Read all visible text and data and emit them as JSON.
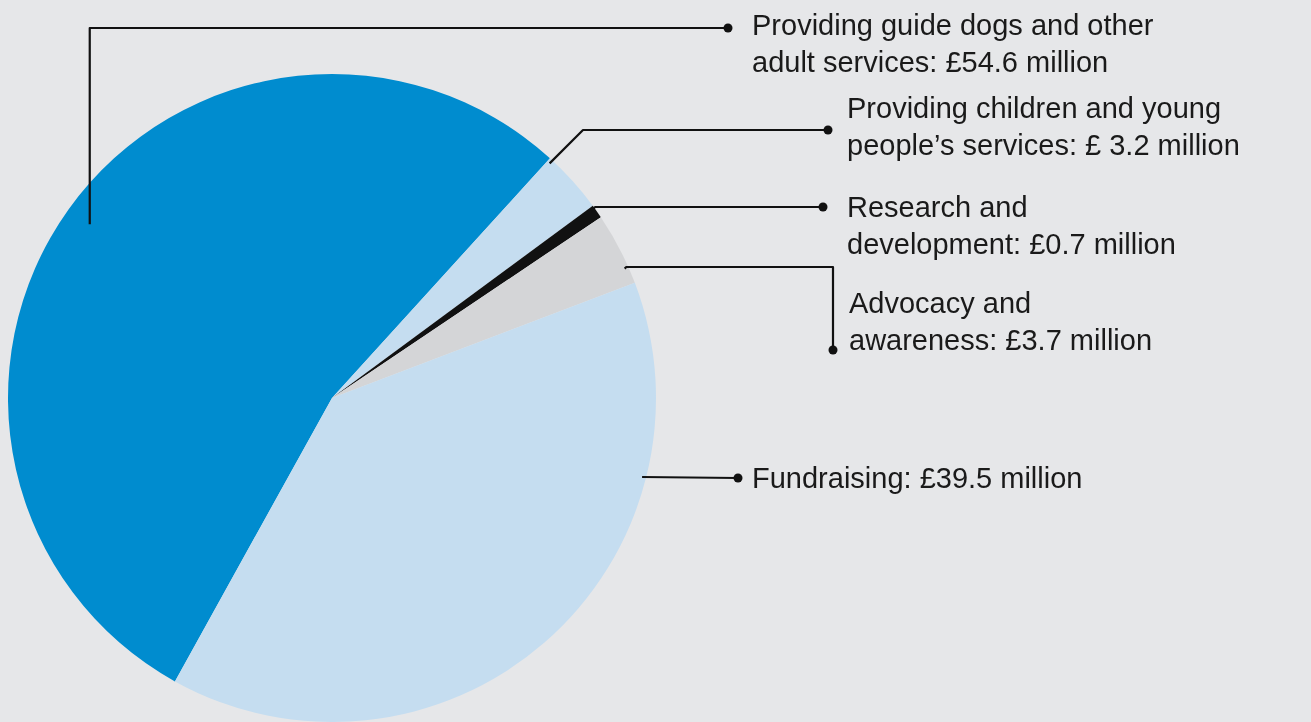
{
  "chart_data": {
    "type": "pie",
    "categories": [
      "Providing guide dogs and other adult services",
      "Providing children and young people’s services",
      "Research and development",
      "Advocacy and awareness",
      "Fundraising"
    ],
    "values": [
      54.6,
      3.2,
      0.7,
      3.7,
      39.5
    ],
    "colors": [
      "#008ccf",
      "#c5ddf0",
      "#111111",
      "#d4d5d7",
      "#c5ddf0"
    ],
    "value_labels": [
      "£54.6 million",
      "£ 3.2 million",
      "£0.7 million",
      "£3.7 million",
      "£39.5 million"
    ]
  }
}
